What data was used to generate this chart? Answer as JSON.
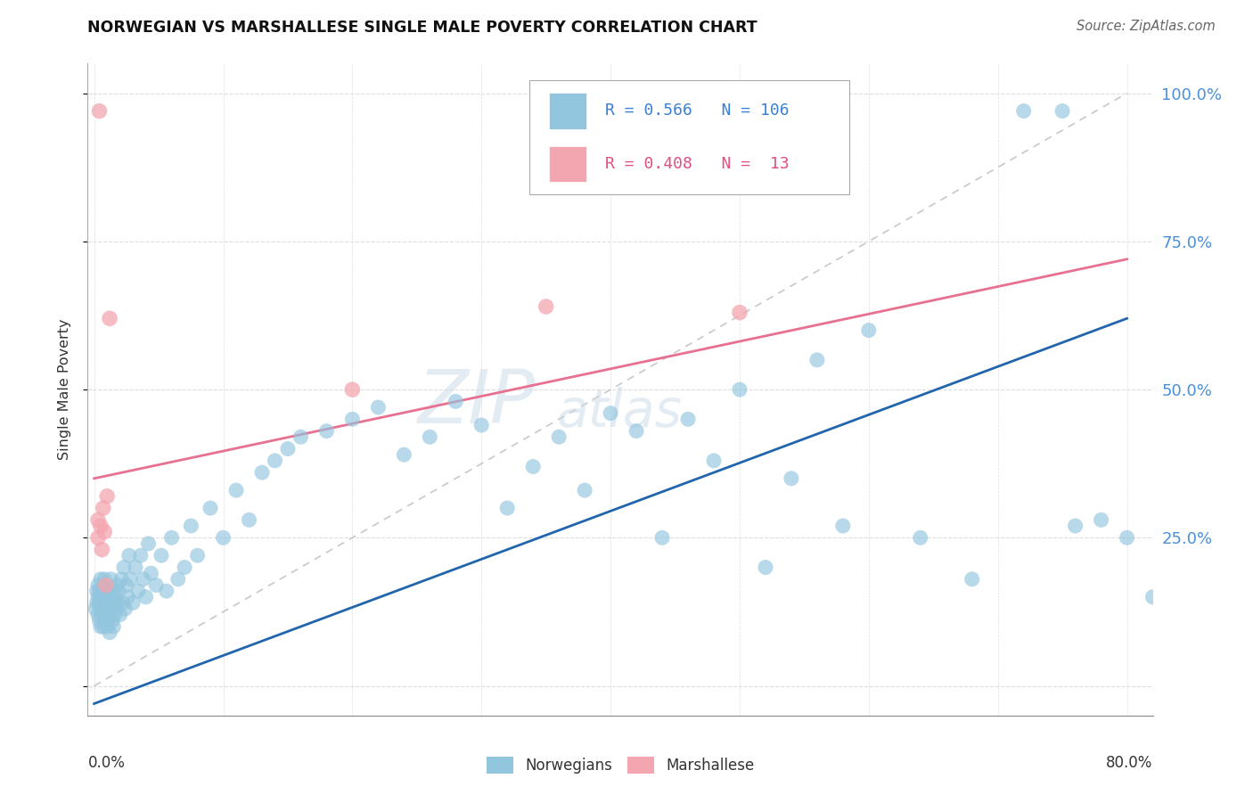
{
  "title": "NORWEGIAN VS MARSHALLESE SINGLE MALE POVERTY CORRELATION CHART",
  "source": "Source: ZipAtlas.com",
  "ylabel": "Single Male Poverty",
  "watermark_zip": "ZIP",
  "watermark_atlas": "atlas",
  "norwegian_R": 0.566,
  "norwegian_N": 106,
  "marshallese_R": 0.408,
  "marshallese_N": 13,
  "norwegian_color": "#92c5de",
  "marshallese_color": "#f4a6b0",
  "trend_norwegian_color": "#2166ac",
  "trend_marshallese_color": "#e87090",
  "trend_diagonal_color": "#c8c8c8",
  "xlim": [
    -0.005,
    0.82
  ],
  "ylim": [
    -0.05,
    1.05
  ],
  "nor_trend_x0": 0.0,
  "nor_trend_y0": -0.03,
  "nor_trend_x1": 0.8,
  "nor_trend_y1": 0.62,
  "mar_trend_x0": 0.0,
  "mar_trend_y0": 0.35,
  "mar_trend_x1": 0.8,
  "mar_trend_y1": 0.72,
  "nor_x": [
    0.001,
    0.002,
    0.002,
    0.003,
    0.003,
    0.003,
    0.004,
    0.004,
    0.004,
    0.005,
    0.005,
    0.005,
    0.005,
    0.006,
    0.006,
    0.006,
    0.007,
    0.007,
    0.007,
    0.008,
    0.008,
    0.008,
    0.009,
    0.009,
    0.01,
    0.01,
    0.01,
    0.011,
    0.011,
    0.012,
    0.012,
    0.013,
    0.013,
    0.014,
    0.014,
    0.015,
    0.015,
    0.016,
    0.016,
    0.017,
    0.018,
    0.018,
    0.019,
    0.02,
    0.021,
    0.022,
    0.023,
    0.024,
    0.025,
    0.026,
    0.027,
    0.028,
    0.03,
    0.032,
    0.034,
    0.036,
    0.038,
    0.04,
    0.042,
    0.044,
    0.048,
    0.052,
    0.056,
    0.06,
    0.065,
    0.07,
    0.075,
    0.08,
    0.09,
    0.1,
    0.11,
    0.12,
    0.13,
    0.14,
    0.15,
    0.16,
    0.18,
    0.2,
    0.22,
    0.24,
    0.26,
    0.28,
    0.3,
    0.32,
    0.34,
    0.36,
    0.38,
    0.4,
    0.42,
    0.44,
    0.46,
    0.48,
    0.5,
    0.52,
    0.54,
    0.56,
    0.58,
    0.6,
    0.64,
    0.68,
    0.72,
    0.75,
    0.76,
    0.78,
    0.8,
    0.82
  ],
  "nor_y": [
    0.13,
    0.14,
    0.16,
    0.12,
    0.15,
    0.17,
    0.11,
    0.14,
    0.16,
    0.1,
    0.13,
    0.15,
    0.18,
    0.12,
    0.14,
    0.16,
    0.1,
    0.13,
    0.17,
    0.11,
    0.15,
    0.18,
    0.12,
    0.16,
    0.1,
    0.14,
    0.17,
    0.11,
    0.15,
    0.09,
    0.13,
    0.16,
    0.18,
    0.11,
    0.14,
    0.1,
    0.16,
    0.12,
    0.15,
    0.13,
    0.17,
    0.14,
    0.16,
    0.12,
    0.18,
    0.14,
    0.2,
    0.13,
    0.17,
    0.15,
    0.22,
    0.18,
    0.14,
    0.2,
    0.16,
    0.22,
    0.18,
    0.15,
    0.24,
    0.19,
    0.17,
    0.22,
    0.16,
    0.25,
    0.18,
    0.2,
    0.27,
    0.22,
    0.3,
    0.25,
    0.33,
    0.28,
    0.36,
    0.38,
    0.4,
    0.42,
    0.43,
    0.45,
    0.47,
    0.39,
    0.42,
    0.48,
    0.44,
    0.3,
    0.37,
    0.42,
    0.33,
    0.46,
    0.43,
    0.25,
    0.45,
    0.38,
    0.5,
    0.2,
    0.35,
    0.55,
    0.27,
    0.6,
    0.25,
    0.18,
    0.97,
    0.97,
    0.27,
    0.28,
    0.25,
    0.15
  ],
  "mar_x": [
    0.003,
    0.003,
    0.004,
    0.005,
    0.006,
    0.007,
    0.008,
    0.009,
    0.01,
    0.012,
    0.2,
    0.35,
    0.5
  ],
  "mar_y": [
    0.25,
    0.28,
    0.97,
    0.27,
    0.23,
    0.3,
    0.26,
    0.17,
    0.32,
    0.62,
    0.5,
    0.64,
    0.63
  ]
}
